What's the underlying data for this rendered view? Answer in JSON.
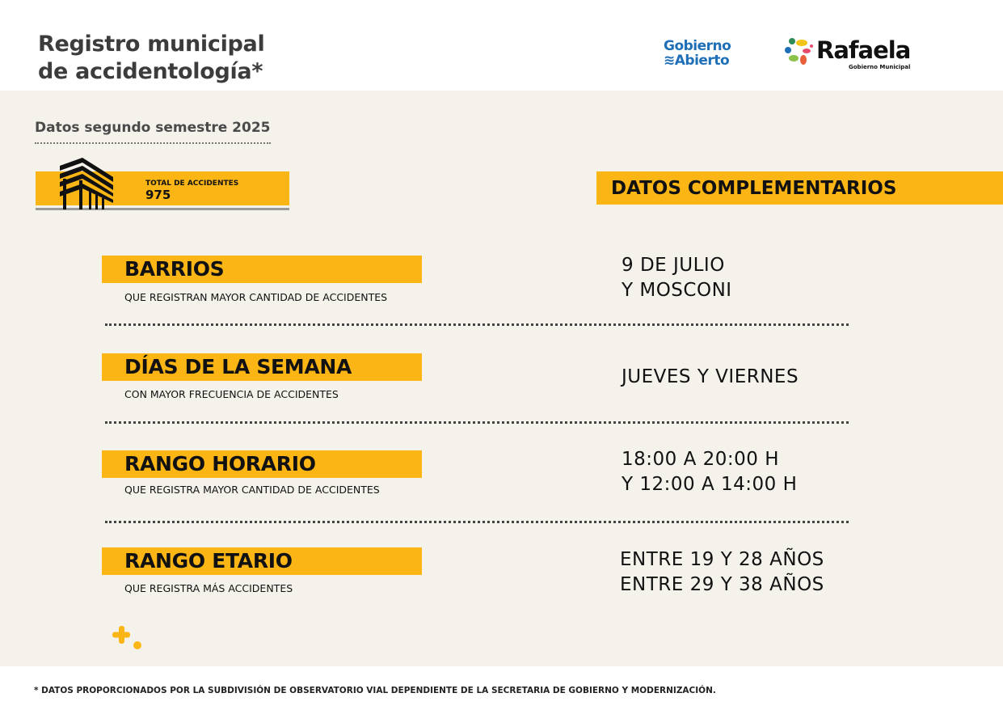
{
  "header": {
    "title_line1": "Registro municipal",
    "title_line2": "de accidentología*",
    "logo1_line1": "Gobierno",
    "logo1_line2": "Abierto",
    "logo2_name": "Rafaela",
    "logo2_sub": "Gobierno Municipal"
  },
  "subtitle": "Datos segundo semestre 2025",
  "total": {
    "label": "TOTAL DE ACCIDENTES",
    "value": "975"
  },
  "complementary_title": "DATOS COMPLEMENTARIOS",
  "rows": [
    {
      "title": "BARRIOS",
      "subtitle": "QUE REGISTRAN MAYOR CANTIDAD DE ACCIDENTES",
      "value_line1": "9 DE JULIO",
      "value_line2": "Y MOSCONI"
    },
    {
      "title": "DÍAS DE LA SEMANA",
      "subtitle": "CON MAYOR FRECUENCIA DE ACCIDENTES",
      "value_line1": "JUEVES Y VIERNES",
      "value_line2": ""
    },
    {
      "title": "RANGO HORARIO",
      "subtitle": "QUE REGISTRA MAYOR CANTIDAD DE ACCIDENTES",
      "value_line1": "18:00 A 20:00 H",
      "value_line2": "Y 12:00 A 14:00 H"
    },
    {
      "title": "RANGO ETARIO",
      "subtitle": "QUE REGISTRA MÁS ACCIDENTES",
      "value_line1": "ENTRE 19 Y 28 AÑOS",
      "value_line2": "ENTRE 29 Y 38 AÑOS"
    }
  ],
  "footnote": "* DATOS PROPORCIONADOS POR LA SUBDIVISIÓN DE OBSERVATORIO VIAL DEPENDIENTE DE LA SECRETARIA DE GOBIERNO Y MODERNIZACIÓN.",
  "colors": {
    "accent": "#fbb616",
    "background": "#f4f2eb",
    "brand_blue": "#1e6fb7"
  }
}
